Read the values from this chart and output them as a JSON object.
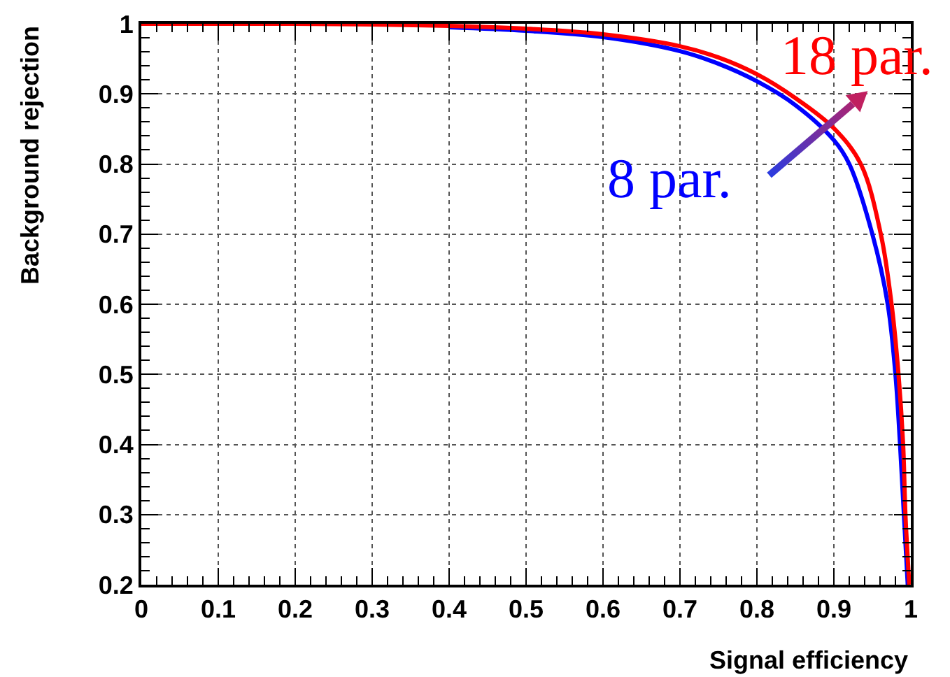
{
  "chart_data": {
    "type": "line",
    "xlabel": "Signal efficiency",
    "ylabel": "Background rejection",
    "xlim": [
      0,
      1
    ],
    "ylim": [
      0.2,
      1
    ],
    "xticks": [
      0,
      0.1,
      0.2,
      0.3,
      0.4,
      0.5,
      0.6,
      0.7,
      0.8,
      0.9,
      1
    ],
    "yticks": [
      0.2,
      0.3,
      0.4,
      0.5,
      0.6,
      0.7,
      0.8,
      0.9,
      1
    ],
    "grid": true,
    "legend": false,
    "marker": "none",
    "line_style": "solid",
    "series": [
      {
        "name": "8 par.",
        "color": "#0000ff",
        "x": [
          0.4,
          0.5,
          0.6,
          0.7,
          0.75,
          0.8,
          0.85,
          0.9,
          0.92,
          0.95,
          0.97,
          0.98,
          0.986,
          0.991,
          0.996
        ],
        "values": [
          0.995,
          0.99,
          0.981,
          0.961,
          0.943,
          0.918,
          0.884,
          0.834,
          0.8,
          0.7,
          0.6,
          0.5,
          0.4,
          0.3,
          0.2
        ]
      },
      {
        "name": "18 par.",
        "color": "#ff0000",
        "x": [
          0,
          0.1,
          0.2,
          0.3,
          0.4,
          0.5,
          0.6,
          0.7,
          0.75,
          0.8,
          0.85,
          0.9,
          0.935,
          0.961,
          0.975,
          0.984,
          0.99,
          0.993,
          0.998
        ],
        "values": [
          1,
          1,
          1,
          0.999,
          0.997,
          0.993,
          0.985,
          0.968,
          0.952,
          0.928,
          0.894,
          0.851,
          0.8,
          0.7,
          0.6,
          0.5,
          0.4,
          0.3,
          0.2
        ]
      }
    ]
  }
}
